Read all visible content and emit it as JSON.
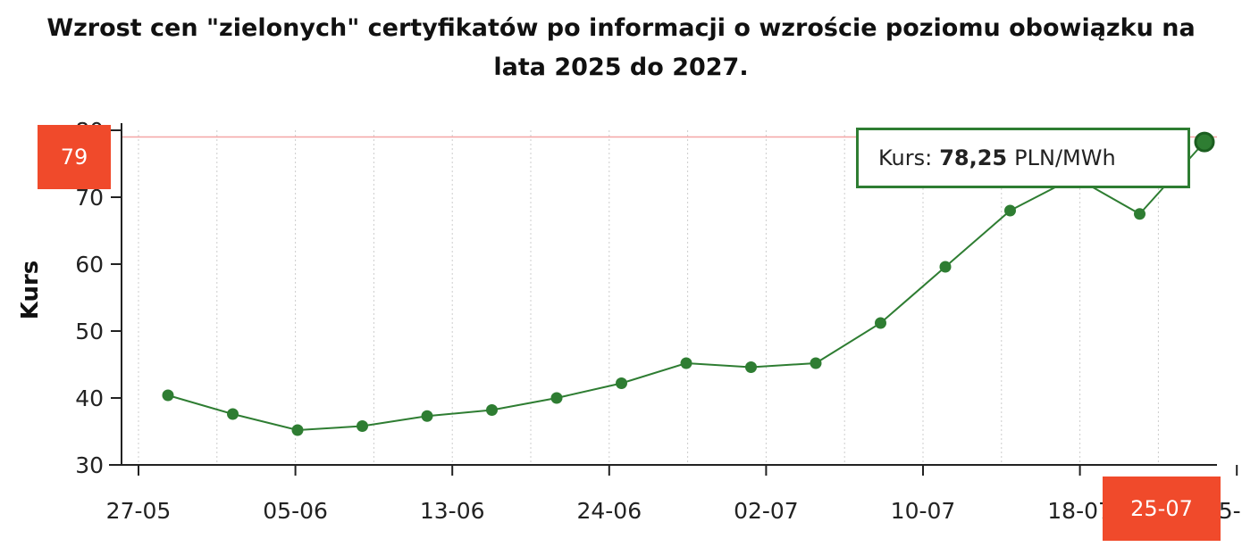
{
  "title_lines": [
    "Wzrost cen \"zielonych\" certyfikatów po informacji o wzroście poziomu obowiązku na",
    "lata 2025 do 2027."
  ],
  "tooltip": {
    "prefix": "Kurs:",
    "value": "78,25",
    "unit": "PLN/MWh"
  },
  "crosshair_labels": {
    "y": "79",
    "x": "25-07"
  },
  "colors": {
    "line": "#2e7d32",
    "marker": "#2e7d32",
    "flag": "#f04a2b",
    "refline": "#f4a6a6",
    "grid": "#cccccc"
  },
  "chart_data": {
    "type": "line",
    "ylabel": "Kurs",
    "ylim": [
      30,
      80
    ],
    "yticks": [
      "30",
      "40",
      "50",
      "60",
      "70",
      "80"
    ],
    "xticks": [
      "27-05",
      "05-06",
      "13-06",
      "24-06",
      "02-07",
      "10-07",
      "18-07",
      "25-07"
    ],
    "grid": "vertical dotted",
    "reference_line": 79,
    "series": [
      {
        "values": [
          40.4,
          37.6,
          35.2,
          35.8,
          37.3,
          38.2,
          40.0,
          42.2,
          45.2,
          44.6,
          45.2,
          51.2,
          59.6,
          68.0,
          73.0,
          67.5,
          78.25
        ]
      }
    ]
  }
}
